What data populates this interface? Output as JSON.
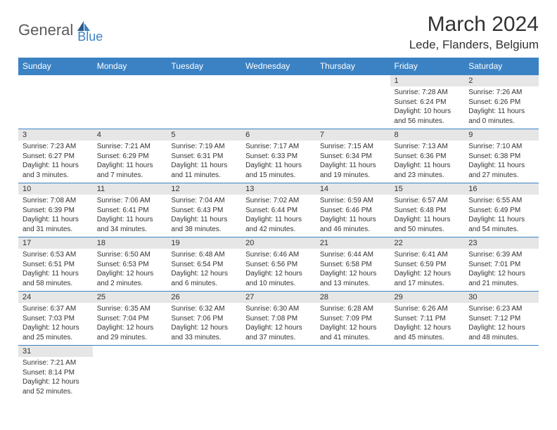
{
  "logo": {
    "main": "General",
    "sub": "Blue"
  },
  "title": "March 2024",
  "location": "Lede, Flanders, Belgium",
  "colors": {
    "header_bg": "#3b82c4",
    "header_text": "#ffffff",
    "daynum_bg": "#e6e6e6",
    "border": "#3b82c4",
    "logo_sub": "#3b82c4",
    "logo_main": "#5a5a5a"
  },
  "day_headers": [
    "Sunday",
    "Monday",
    "Tuesday",
    "Wednesday",
    "Thursday",
    "Friday",
    "Saturday"
  ],
  "weeks": [
    [
      null,
      null,
      null,
      null,
      null,
      {
        "n": "1",
        "sunrise": "Sunrise: 7:28 AM",
        "sunset": "Sunset: 6:24 PM",
        "daylight": "Daylight: 10 hours and 56 minutes."
      },
      {
        "n": "2",
        "sunrise": "Sunrise: 7:26 AM",
        "sunset": "Sunset: 6:26 PM",
        "daylight": "Daylight: 11 hours and 0 minutes."
      }
    ],
    [
      {
        "n": "3",
        "sunrise": "Sunrise: 7:23 AM",
        "sunset": "Sunset: 6:27 PM",
        "daylight": "Daylight: 11 hours and 3 minutes."
      },
      {
        "n": "4",
        "sunrise": "Sunrise: 7:21 AM",
        "sunset": "Sunset: 6:29 PM",
        "daylight": "Daylight: 11 hours and 7 minutes."
      },
      {
        "n": "5",
        "sunrise": "Sunrise: 7:19 AM",
        "sunset": "Sunset: 6:31 PM",
        "daylight": "Daylight: 11 hours and 11 minutes."
      },
      {
        "n": "6",
        "sunrise": "Sunrise: 7:17 AM",
        "sunset": "Sunset: 6:33 PM",
        "daylight": "Daylight: 11 hours and 15 minutes."
      },
      {
        "n": "7",
        "sunrise": "Sunrise: 7:15 AM",
        "sunset": "Sunset: 6:34 PM",
        "daylight": "Daylight: 11 hours and 19 minutes."
      },
      {
        "n": "8",
        "sunrise": "Sunrise: 7:13 AM",
        "sunset": "Sunset: 6:36 PM",
        "daylight": "Daylight: 11 hours and 23 minutes."
      },
      {
        "n": "9",
        "sunrise": "Sunrise: 7:10 AM",
        "sunset": "Sunset: 6:38 PM",
        "daylight": "Daylight: 11 hours and 27 minutes."
      }
    ],
    [
      {
        "n": "10",
        "sunrise": "Sunrise: 7:08 AM",
        "sunset": "Sunset: 6:39 PM",
        "daylight": "Daylight: 11 hours and 31 minutes."
      },
      {
        "n": "11",
        "sunrise": "Sunrise: 7:06 AM",
        "sunset": "Sunset: 6:41 PM",
        "daylight": "Daylight: 11 hours and 34 minutes."
      },
      {
        "n": "12",
        "sunrise": "Sunrise: 7:04 AM",
        "sunset": "Sunset: 6:43 PM",
        "daylight": "Daylight: 11 hours and 38 minutes."
      },
      {
        "n": "13",
        "sunrise": "Sunrise: 7:02 AM",
        "sunset": "Sunset: 6:44 PM",
        "daylight": "Daylight: 11 hours and 42 minutes."
      },
      {
        "n": "14",
        "sunrise": "Sunrise: 6:59 AM",
        "sunset": "Sunset: 6:46 PM",
        "daylight": "Daylight: 11 hours and 46 minutes."
      },
      {
        "n": "15",
        "sunrise": "Sunrise: 6:57 AM",
        "sunset": "Sunset: 6:48 PM",
        "daylight": "Daylight: 11 hours and 50 minutes."
      },
      {
        "n": "16",
        "sunrise": "Sunrise: 6:55 AM",
        "sunset": "Sunset: 6:49 PM",
        "daylight": "Daylight: 11 hours and 54 minutes."
      }
    ],
    [
      {
        "n": "17",
        "sunrise": "Sunrise: 6:53 AM",
        "sunset": "Sunset: 6:51 PM",
        "daylight": "Daylight: 11 hours and 58 minutes."
      },
      {
        "n": "18",
        "sunrise": "Sunrise: 6:50 AM",
        "sunset": "Sunset: 6:53 PM",
        "daylight": "Daylight: 12 hours and 2 minutes."
      },
      {
        "n": "19",
        "sunrise": "Sunrise: 6:48 AM",
        "sunset": "Sunset: 6:54 PM",
        "daylight": "Daylight: 12 hours and 6 minutes."
      },
      {
        "n": "20",
        "sunrise": "Sunrise: 6:46 AM",
        "sunset": "Sunset: 6:56 PM",
        "daylight": "Daylight: 12 hours and 10 minutes."
      },
      {
        "n": "21",
        "sunrise": "Sunrise: 6:44 AM",
        "sunset": "Sunset: 6:58 PM",
        "daylight": "Daylight: 12 hours and 13 minutes."
      },
      {
        "n": "22",
        "sunrise": "Sunrise: 6:41 AM",
        "sunset": "Sunset: 6:59 PM",
        "daylight": "Daylight: 12 hours and 17 minutes."
      },
      {
        "n": "23",
        "sunrise": "Sunrise: 6:39 AM",
        "sunset": "Sunset: 7:01 PM",
        "daylight": "Daylight: 12 hours and 21 minutes."
      }
    ],
    [
      {
        "n": "24",
        "sunrise": "Sunrise: 6:37 AM",
        "sunset": "Sunset: 7:03 PM",
        "daylight": "Daylight: 12 hours and 25 minutes."
      },
      {
        "n": "25",
        "sunrise": "Sunrise: 6:35 AM",
        "sunset": "Sunset: 7:04 PM",
        "daylight": "Daylight: 12 hours and 29 minutes."
      },
      {
        "n": "26",
        "sunrise": "Sunrise: 6:32 AM",
        "sunset": "Sunset: 7:06 PM",
        "daylight": "Daylight: 12 hours and 33 minutes."
      },
      {
        "n": "27",
        "sunrise": "Sunrise: 6:30 AM",
        "sunset": "Sunset: 7:08 PM",
        "daylight": "Daylight: 12 hours and 37 minutes."
      },
      {
        "n": "28",
        "sunrise": "Sunrise: 6:28 AM",
        "sunset": "Sunset: 7:09 PM",
        "daylight": "Daylight: 12 hours and 41 minutes."
      },
      {
        "n": "29",
        "sunrise": "Sunrise: 6:26 AM",
        "sunset": "Sunset: 7:11 PM",
        "daylight": "Daylight: 12 hours and 45 minutes."
      },
      {
        "n": "30",
        "sunrise": "Sunrise: 6:23 AM",
        "sunset": "Sunset: 7:12 PM",
        "daylight": "Daylight: 12 hours and 48 minutes."
      }
    ],
    [
      {
        "n": "31",
        "sunrise": "Sunrise: 7:21 AM",
        "sunset": "Sunset: 8:14 PM",
        "daylight": "Daylight: 12 hours and 52 minutes."
      },
      null,
      null,
      null,
      null,
      null,
      null
    ]
  ]
}
